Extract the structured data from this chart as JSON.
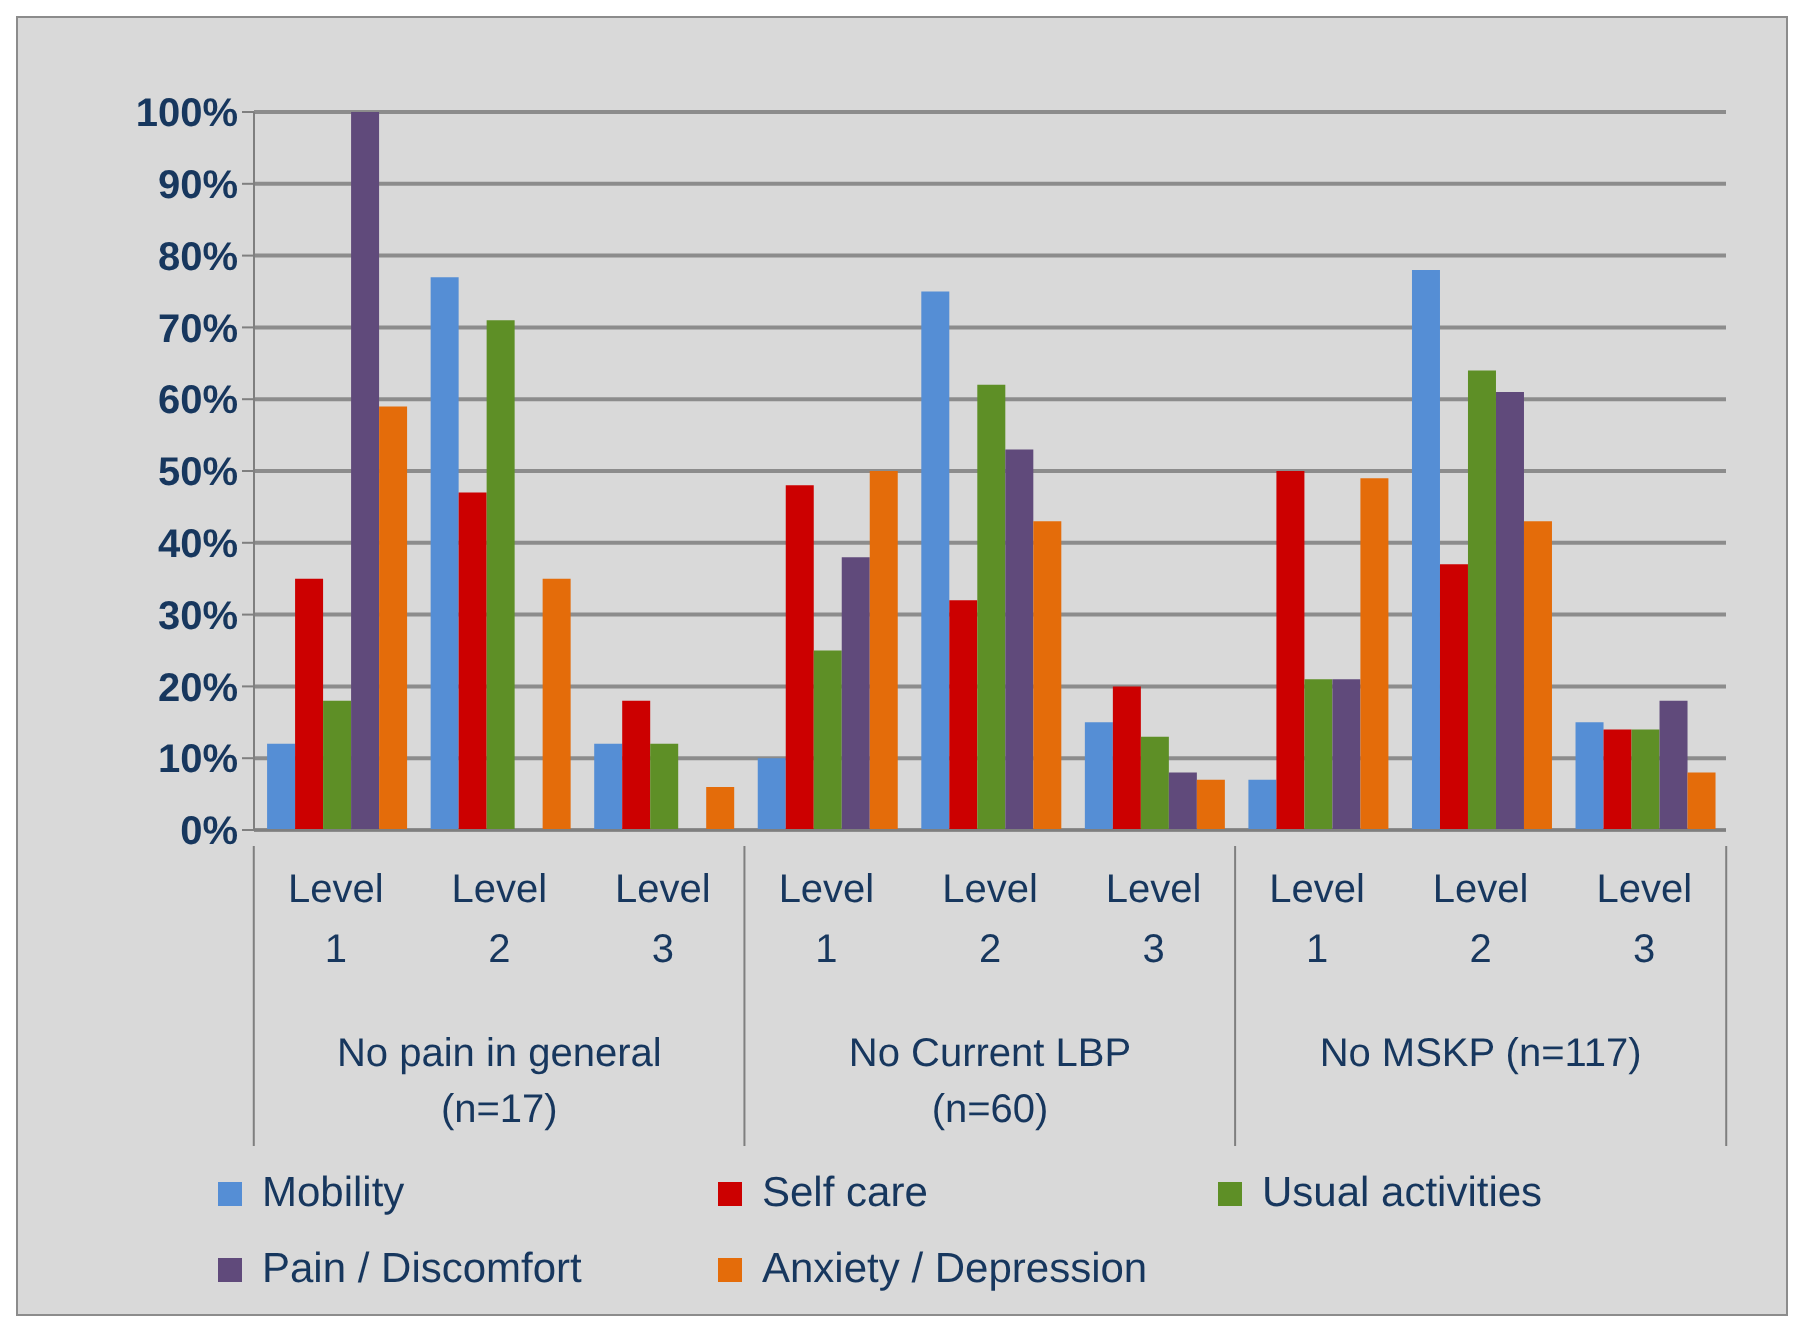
{
  "chart_data": {
    "type": "bar",
    "categories": [
      "Level 1",
      "Level 2",
      "Level 3",
      "Level 1",
      "Level 2",
      "Level 3",
      "Level 1",
      "Level 2",
      "Level 3"
    ],
    "annotations": [
      "No pain in general (n=17)",
      "No Current LBP (n=60)",
      "No MSKP (n=117)"
    ],
    "series": [
      {
        "name": "Mobility",
        "color": "#558ed5",
        "values": [
          12,
          77,
          12,
          10,
          75,
          15,
          7,
          78,
          15
        ]
      },
      {
        "name": "Self care",
        "color": "#cc0000",
        "values": [
          35,
          47,
          18,
          48,
          32,
          20,
          50,
          37,
          14
        ]
      },
      {
        "name": "Usual activities",
        "color": "#5e8f26",
        "values": [
          18,
          71,
          12,
          25,
          62,
          13,
          21,
          64,
          14
        ]
      },
      {
        "name": "Pain / Discomfort",
        "color": "#604a7b",
        "values": [
          100,
          0,
          0,
          38,
          53,
          8,
          21,
          61,
          18
        ]
      },
      {
        "name": "Anxiety / Depression",
        "color": "#e46c0a",
        "values": [
          59,
          35,
          6,
          50,
          43,
          7,
          49,
          43,
          8
        ]
      }
    ],
    "ylim": [
      0,
      100
    ],
    "yticks": [
      {
        "value": 0,
        "label": "0%"
      },
      {
        "value": 10,
        "label": "10%"
      },
      {
        "value": 20,
        "label": "20%"
      },
      {
        "value": 30,
        "label": "30%"
      },
      {
        "value": 40,
        "label": "40%"
      },
      {
        "value": 50,
        "label": "50%"
      },
      {
        "value": 60,
        "label": "60%"
      },
      {
        "value": 70,
        "label": "70%"
      },
      {
        "value": 80,
        "label": "80%"
      },
      {
        "value": 90,
        "label": "90%"
      },
      {
        "value": 100,
        "label": "100%"
      }
    ],
    "grid": "y",
    "legend": "bottom"
  }
}
